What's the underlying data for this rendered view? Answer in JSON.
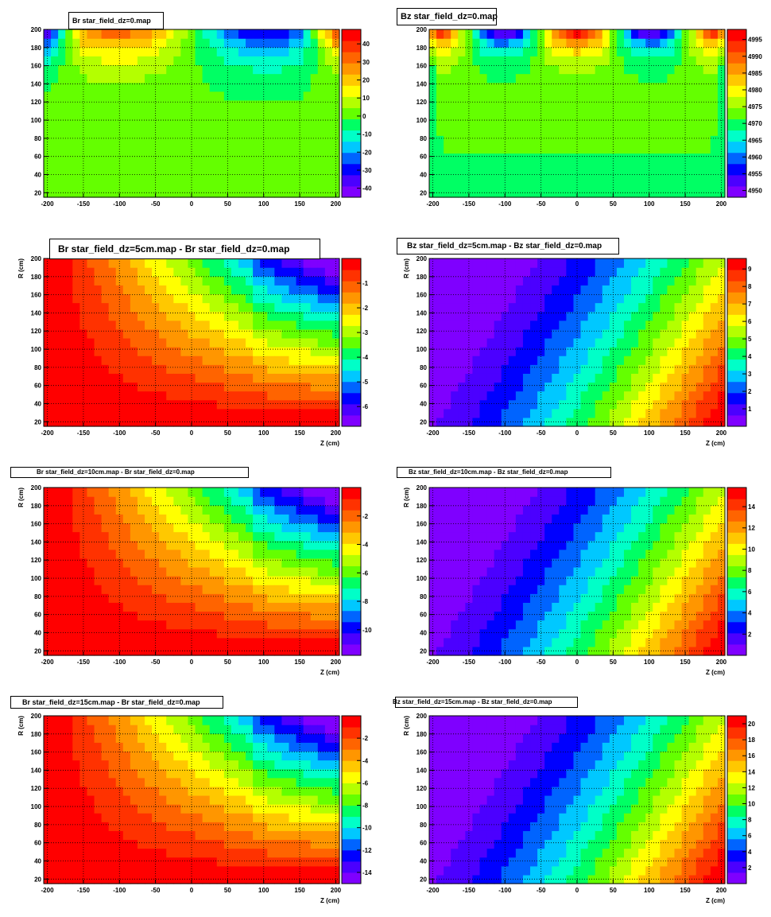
{
  "page": {
    "background": "#ffffff"
  },
  "chart_data": [
    {
      "type": "heatmap",
      "panel": "br-dz0",
      "title": "Br star_field_dz=0.map",
      "xlabel": "",
      "ylabel": "",
      "xlim": [
        -205,
        205
      ],
      "ylim": [
        15,
        200
      ],
      "xticks": [
        "-200",
        "-150",
        "-100",
        "-50",
        "0",
        "50",
        "100",
        "150",
        "200"
      ],
      "yticks": [
        "20",
        "40",
        "60",
        "80",
        "100",
        "120",
        "140",
        "160",
        "180",
        "200"
      ],
      "zlim": [
        -45,
        48
      ],
      "zticks": [
        "-40",
        "-30",
        "-20",
        "-10",
        "0",
        "10",
        "20",
        "30",
        "40"
      ],
      "ztick_values": [
        -40,
        -30,
        -20,
        -10,
        0,
        10,
        20,
        30,
        40
      ],
      "grid": true,
      "field": "br0"
    },
    {
      "type": "heatmap",
      "panel": "bz-dz0",
      "title": "Bz star_field_dz=0.map",
      "xlabel": "",
      "ylabel": "",
      "xlim": [
        -205,
        205
      ],
      "ylim": [
        15,
        200
      ],
      "xticks": [
        "-200",
        "-150",
        "-100",
        "-50",
        "0",
        "50",
        "100",
        "150",
        "200"
      ],
      "yticks": [
        "20",
        "40",
        "60",
        "80",
        "100",
        "120",
        "140",
        "160",
        "180",
        "200"
      ],
      "zlim": [
        4948,
        4998
      ],
      "zticks": [
        "4950",
        "4955",
        "4960",
        "4965",
        "4970",
        "4975",
        "4980",
        "4985",
        "4990",
        "4995"
      ],
      "ztick_values": [
        4950,
        4955,
        4960,
        4965,
        4970,
        4975,
        4980,
        4985,
        4990,
        4995
      ],
      "grid": true,
      "field": "bz0"
    },
    {
      "type": "heatmap",
      "panel": "br-dz5",
      "title": "Br star_field_dz=5cm.map - Br star_field_dz=0.map",
      "xlabel": "Z (cm)",
      "ylabel": "R (cm)",
      "xlim": [
        -205,
        205
      ],
      "ylim": [
        15,
        200
      ],
      "xticks": [
        "-200",
        "-150",
        "-100",
        "-50",
        "0",
        "50",
        "100",
        "150",
        "200"
      ],
      "yticks": [
        "20",
        "40",
        "60",
        "80",
        "100",
        "120",
        "140",
        "160",
        "180",
        "200"
      ],
      "zlim": [
        -6.8,
        0
      ],
      "zticks": [
        "-1",
        "-2",
        "-3",
        "-4",
        "-5",
        "-6"
      ],
      "ztick_values": [
        -1,
        -2,
        -3,
        -4,
        -5,
        -6
      ],
      "grid": true,
      "field": "brd",
      "scale": 6.8
    },
    {
      "type": "heatmap",
      "panel": "bz-dz5",
      "title": "Bz star_field_dz=5cm.map - Bz star_field_dz=0.map",
      "xlabel": "Z (cm)",
      "ylabel": "R (cm)",
      "xlim": [
        -205,
        205
      ],
      "ylim": [
        15,
        200
      ],
      "xticks": [
        "-200",
        "-150",
        "-100",
        "-50",
        "0",
        "50",
        "100",
        "150",
        "200"
      ],
      "yticks": [
        "20",
        "40",
        "60",
        "80",
        "100",
        "120",
        "140",
        "160",
        "180",
        "200"
      ],
      "zlim": [
        0,
        9.6
      ],
      "zticks": [
        "1",
        "2",
        "3",
        "4",
        "5",
        "6",
        "7",
        "8",
        "9"
      ],
      "ztick_values": [
        1,
        2,
        3,
        4,
        5,
        6,
        7,
        8,
        9
      ],
      "grid": true,
      "field": "bzd",
      "scale": 9.6
    },
    {
      "type": "heatmap",
      "panel": "br-dz10",
      "title": "Br star_field_dz=10cm.map - Br star_field_dz=0.map",
      "xlabel": "Z (cm)",
      "ylabel": "R (cm)",
      "xlim": [
        -205,
        205
      ],
      "ylim": [
        15,
        200
      ],
      "xticks": [
        "-200",
        "-150",
        "-100",
        "-50",
        "0",
        "50",
        "100",
        "150",
        "200"
      ],
      "yticks": [
        "20",
        "40",
        "60",
        "80",
        "100",
        "120",
        "140",
        "160",
        "180",
        "200"
      ],
      "zlim": [
        -11.8,
        0
      ],
      "zticks": [
        "-2",
        "-4",
        "-6",
        "-8",
        "-10"
      ],
      "ztick_values": [
        -2,
        -4,
        -6,
        -8,
        -10
      ],
      "grid": true,
      "field": "brd",
      "scale": 11.8
    },
    {
      "type": "heatmap",
      "panel": "bz-dz10",
      "title": "Bz star_field_dz=10cm.map - Bz star_field_dz=0.map",
      "xlabel": "Z (cm)",
      "ylabel": "R (cm)",
      "xlim": [
        -205,
        205
      ],
      "ylim": [
        15,
        200
      ],
      "xticks": [
        "-200",
        "-150",
        "-100",
        "-50",
        "0",
        "50",
        "100",
        "150",
        "200"
      ],
      "yticks": [
        "20",
        "40",
        "60",
        "80",
        "100",
        "120",
        "140",
        "160",
        "180",
        "200"
      ],
      "zlim": [
        0,
        15.8
      ],
      "zticks": [
        "2",
        "4",
        "6",
        "8",
        "10",
        "12",
        "14"
      ],
      "ztick_values": [
        2,
        4,
        6,
        8,
        10,
        12,
        14
      ],
      "grid": true,
      "field": "bzd",
      "scale": 15.8
    },
    {
      "type": "heatmap",
      "panel": "br-dz15",
      "title": "Br star_field_dz=15cm.map - Br star_field_dz=0.map",
      "xlabel": "Z (cm)",
      "ylabel": "R (cm)",
      "xlim": [
        -205,
        205
      ],
      "ylim": [
        15,
        200
      ],
      "xticks": [
        "-200",
        "-150",
        "-100",
        "-50",
        "0",
        "50",
        "100",
        "150",
        "200"
      ],
      "yticks": [
        "20",
        "40",
        "60",
        "80",
        "100",
        "120",
        "140",
        "160",
        "180",
        "200"
      ],
      "zlim": [
        -15,
        0
      ],
      "zticks": [
        "-2",
        "-4",
        "-6",
        "-8",
        "-10",
        "-12",
        "-14"
      ],
      "ztick_values": [
        -2,
        -4,
        -6,
        -8,
        -10,
        -12,
        -14
      ],
      "grid": true,
      "field": "brd",
      "scale": 15
    },
    {
      "type": "heatmap",
      "panel": "bz-dz15",
      "title": "Bz star_field_dz=15cm.map - Bz star_field_dz=0.map",
      "xlabel": "Z (cm)",
      "ylabel": "R (cm)",
      "xlim": [
        -205,
        205
      ],
      "ylim": [
        15,
        200
      ],
      "xticks": [
        "-200",
        "-150",
        "-100",
        "-50",
        "0",
        "50",
        "100",
        "150",
        "200"
      ],
      "yticks": [
        "20",
        "40",
        "60",
        "80",
        "100",
        "120",
        "140",
        "160",
        "180",
        "200"
      ],
      "zlim": [
        0,
        21
      ],
      "zticks": [
        "2",
        "4",
        "6",
        "8",
        "10",
        "12",
        "14",
        "16",
        "18",
        "20"
      ],
      "ztick_values": [
        2,
        4,
        6,
        8,
        10,
        12,
        14,
        16,
        18,
        20
      ],
      "grid": true,
      "field": "bzd",
      "scale": 21
    }
  ],
  "palette": [
    "#7f00ff",
    "#4b00ff",
    "#0000ff",
    "#0064ff",
    "#00c8ff",
    "#00ffc8",
    "#00ff64",
    "#64ff00",
    "#b4ff00",
    "#ffff00",
    "#ffc800",
    "#ff9600",
    "#ff6400",
    "#ff3200",
    "#ff0000"
  ]
}
